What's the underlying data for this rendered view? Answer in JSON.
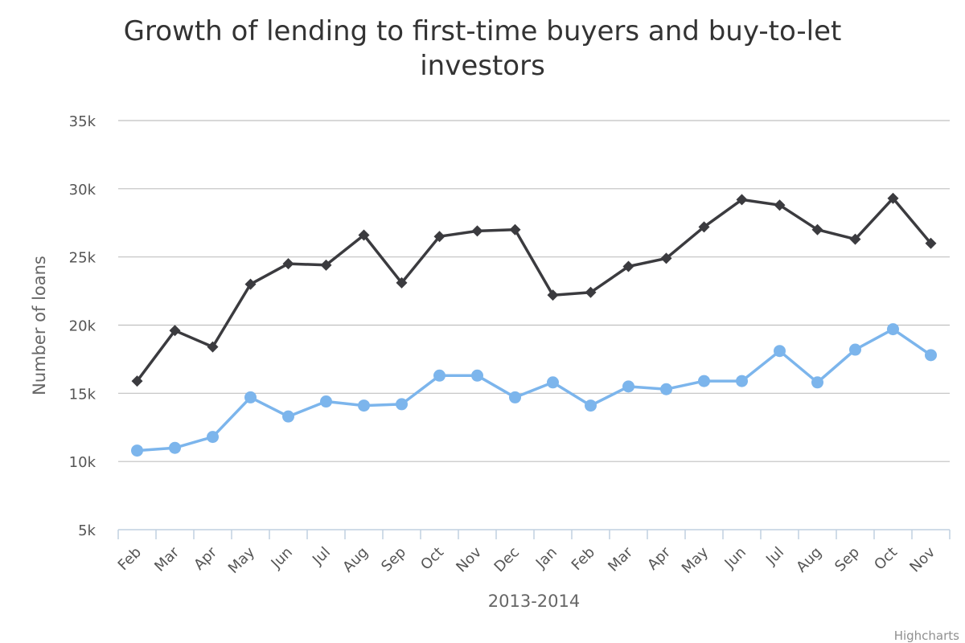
{
  "colors": {
    "investors": "#3b3b3f",
    "first_time": "#7cb5ec",
    "grid": "#c0c0c0",
    "axis": "#c0d0e0"
  },
  "credits": "Highcharts",
  "chart_data": {
    "type": "line",
    "title": "Growth of lending to first-time buyers and buy-to-let investors",
    "xlabel": "2013-2014",
    "ylabel": "Number of loans",
    "ylim": [
      5000,
      35000
    ],
    "yticks": [
      {
        "value": 5000,
        "label": "5k"
      },
      {
        "value": 10000,
        "label": "10k"
      },
      {
        "value": 15000,
        "label": "15k"
      },
      {
        "value": 20000,
        "label": "20k"
      },
      {
        "value": 25000,
        "label": "25k"
      },
      {
        "value": 30000,
        "label": "30k"
      },
      {
        "value": 35000,
        "label": "35k"
      }
    ],
    "grid": true,
    "legend": "none",
    "categories": [
      "Feb",
      "Mar",
      "Apr",
      "May",
      "Jun",
      "Jul",
      "Aug",
      "Sep",
      "Oct",
      "Nov",
      "Dec",
      "Jan",
      "Feb",
      "Mar",
      "Apr",
      "May",
      "Jun",
      "Jul",
      "Aug",
      "Sep",
      "Oct",
      "Nov"
    ],
    "series": [
      {
        "marker": "diamond",
        "color": "#3b3b3f",
        "values": [
          15900,
          19600,
          18400,
          23000,
          24500,
          24400,
          26600,
          23100,
          26500,
          26900,
          27000,
          22200,
          22400,
          24300,
          24900,
          27200,
          29200,
          28800,
          27000,
          26300,
          29300,
          26000
        ]
      },
      {
        "marker": "circle",
        "color": "#7cb5ec",
        "values": [
          10800,
          11000,
          11800,
          14700,
          13300,
          14400,
          14100,
          14200,
          16300,
          16300,
          14700,
          15800,
          14100,
          15500,
          15300,
          15900,
          15900,
          18100,
          15800,
          18200,
          19700,
          17800
        ]
      }
    ]
  }
}
